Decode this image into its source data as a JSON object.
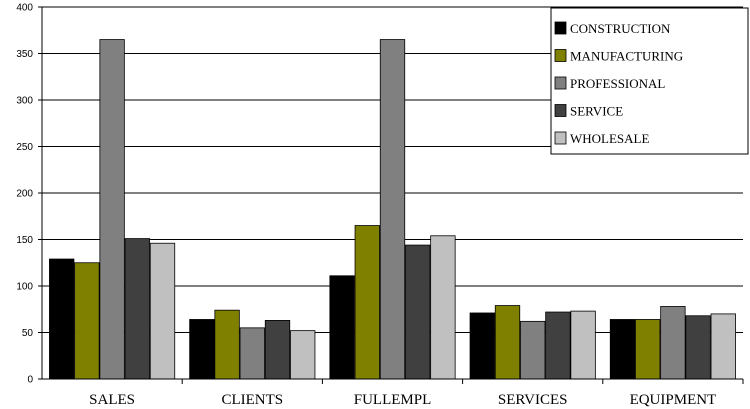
{
  "chart_data": {
    "type": "bar",
    "title": "",
    "xlabel": "",
    "ylabel": "",
    "categories": [
      "SALES",
      "CLIENTS",
      "FULLEMPL",
      "SERVICES",
      "EQUIPMENT"
    ],
    "series": [
      {
        "name": "CONSTRUCTION",
        "color": "#000000",
        "values": [
          129,
          64,
          111,
          71,
          64
        ]
      },
      {
        "name": "MANUFACTURING",
        "color": "#808000",
        "values": [
          125,
          74,
          165,
          79,
          64
        ]
      },
      {
        "name": "PROFESSIONAL",
        "color": "#808080",
        "values": [
          365,
          55,
          365,
          62,
          78
        ]
      },
      {
        "name": "SERVICE",
        "color": "#404040",
        "values": [
          151,
          63,
          144,
          72,
          68
        ]
      },
      {
        "name": "WHOLESALE",
        "color": "#c0c0c0",
        "values": [
          146,
          52,
          154,
          73,
          70
        ]
      }
    ],
    "ylim": [
      0,
      400
    ],
    "yticks": [
      0,
      50,
      100,
      150,
      200,
      250,
      300,
      350,
      400
    ],
    "grid": true,
    "legend_position": "top-right"
  }
}
